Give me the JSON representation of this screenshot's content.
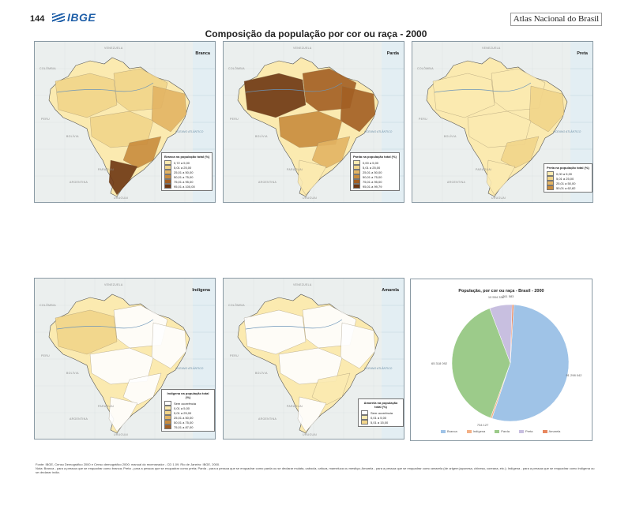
{
  "header": {
    "page_number": "144",
    "logo_text": "IBGE",
    "atlas_title": "Atlas Nacional do Brasil",
    "main_title": "Composição da população por cor ou raça - 2000"
  },
  "neighbors": {
    "venezuela": "VENEZUELA",
    "colombia": "COLÔMBIA",
    "peru": "PERU",
    "bolivia": "BOLÍVIA",
    "paraguai": "PARAGUAI",
    "argentina": "ARGENTINA",
    "uruguai": "URUGUAI",
    "oceano": "OCEANO ATLÂNTICO"
  },
  "maps": [
    {
      "label": "Branca",
      "legend_title": "Branca na população total (%)",
      "classes": [
        {
          "range": "0,72 a 5,00",
          "color": "#fbeab0"
        },
        {
          "range": "5,01 a 25,00",
          "color": "#f2d58a"
        },
        {
          "range": "25,01 a 50,00",
          "color": "#e3b463"
        },
        {
          "range": "50,01 a 75,00",
          "color": "#c98c3d"
        },
        {
          "range": "75,01 a 95,00",
          "color": "#a35f23"
        },
        {
          "range": "95,01 a 100,00",
          "color": "#6e3712"
        }
      ]
    },
    {
      "label": "Parda",
      "legend_title": "Parda na população total (%)",
      "classes": [
        {
          "range": "0,00 a 5,00",
          "color": "#fbeab0"
        },
        {
          "range": "5,01 a 25,00",
          "color": "#f2d58a"
        },
        {
          "range": "25,01 a 50,00",
          "color": "#e3b463"
        },
        {
          "range": "50,01 a 75,00",
          "color": "#c98c3d"
        },
        {
          "range": "75,01 a 95,00",
          "color": "#a35f23"
        },
        {
          "range": "95,01 a 99,79",
          "color": "#6e3712"
        }
      ]
    },
    {
      "label": "Preta",
      "legend_title": "Preta na população total (%)",
      "classes": [
        {
          "range": "0,00 a 5,00",
          "color": "#fbeab0"
        },
        {
          "range": "5,01 a 25,00",
          "color": "#f2d58a"
        },
        {
          "range": "25,01 a 50,00",
          "color": "#e3b463"
        },
        {
          "range": "50,01 a 62,82",
          "color": "#c98c3d"
        }
      ]
    },
    {
      "label": "Indígena",
      "legend_title": "Indígena na população total (%)",
      "classes": [
        {
          "range": "Sem ocorrência",
          "color": "#ffffff"
        },
        {
          "range": "0,01 a 5,00",
          "color": "#fbeab0"
        },
        {
          "range": "5,01 a 25,00",
          "color": "#f2d58a"
        },
        {
          "range": "25,01 a 50,00",
          "color": "#e3b463"
        },
        {
          "range": "50,01 a 75,00",
          "color": "#c98c3d"
        },
        {
          "range": "75,01 a 87,00",
          "color": "#a35f23"
        }
      ]
    },
    {
      "label": "Amarela",
      "legend_title": "Amarela na população total (%)",
      "classes": [
        {
          "range": "Sem ocorrência",
          "color": "#ffffff"
        },
        {
          "range": "0,01 a 5,00",
          "color": "#fbeab0"
        },
        {
          "range": "5,01 a 15,00",
          "color": "#f2d58a"
        }
      ]
    }
  ],
  "chart_data": {
    "type": "pie",
    "title": "População, por cor ou raça - Brasil - 2000",
    "categories": [
      "Branca",
      "Indígena",
      "Parda",
      "Preta",
      "Amarela"
    ],
    "values": [
      91298042,
      734127,
      65318092,
      10554336,
      761583
    ],
    "value_labels": [
      "91 298 042",
      "734 127",
      "65 318 092",
      "10 554 336",
      "761 583"
    ],
    "colors": [
      "#9fc3e7",
      "#f3b187",
      "#9ccb8a",
      "#c8bfe0",
      "#e8875f"
    ],
    "legend_position": "bottom"
  },
  "footnote": {
    "line1": "Fonte: IBGE, Censo Demográfico 2000 e Censo demográfico 2000: manual do recenseador - CD 1.09. Rio de Janeiro: IBGE, 2000.",
    "line2": "Nota: Branca - para a pessoa que se enquadrar como branca; Preta - para a pessoa que se enquadrar como preta; Parda - para a pessoa que se enquadrar como parda ou se declarar mulata, cabocla, cafuza, mameluca ou mestiça; Amarela - para a pessoa que se enquadrar como amarela (de origem japonesa, chinesa, coreana, etc.); Indígena - para a pessoa que se enquadrar como indígena ou se declarar índia."
  }
}
